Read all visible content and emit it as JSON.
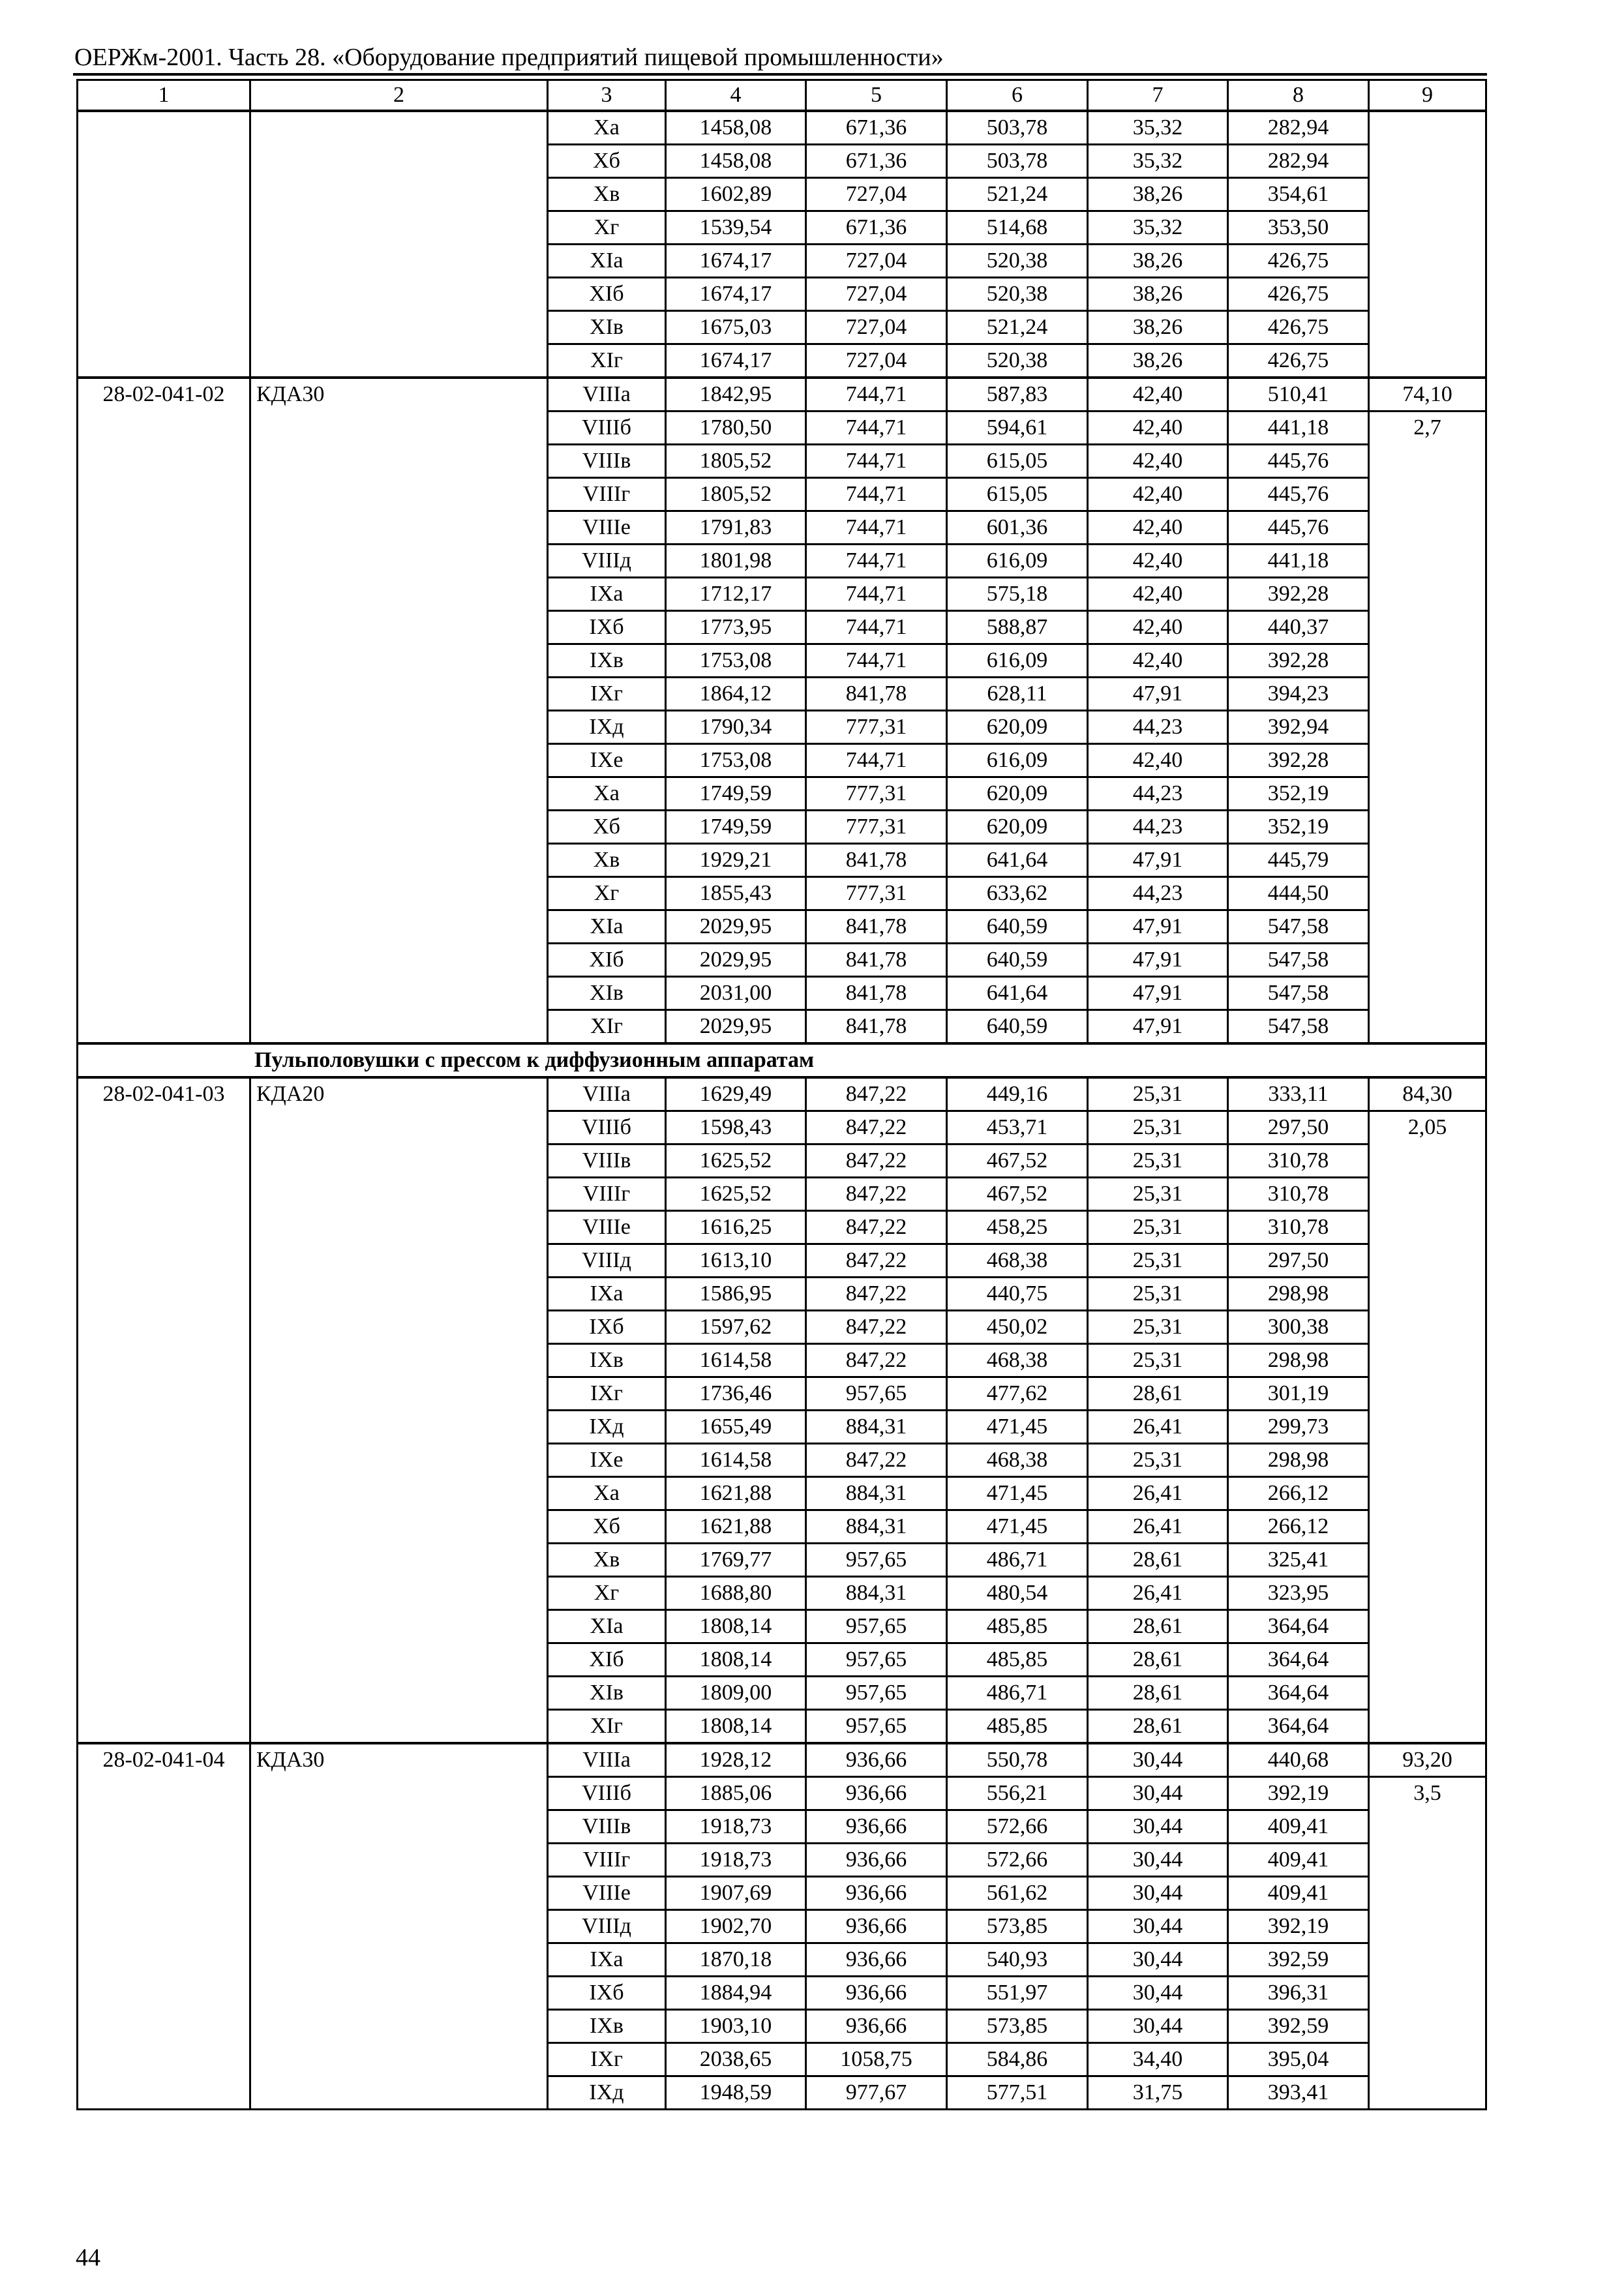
{
  "header": {
    "title": "ОЕРЖм-2001. Часть 28. «Оборудование предприятий пищевой промышленности»"
  },
  "table": {
    "column_numbers": [
      "1",
      "2",
      "3",
      "4",
      "5",
      "6",
      "7",
      "8",
      "9"
    ],
    "blocks": [
      {
        "type": "group",
        "code": "",
        "name": "",
        "col9": [],
        "rows": [
          [
            "Xа",
            "1458,08",
            "671,36",
            "503,78",
            "35,32",
            "282,94"
          ],
          [
            "Xб",
            "1458,08",
            "671,36",
            "503,78",
            "35,32",
            "282,94"
          ],
          [
            "Xв",
            "1602,89",
            "727,04",
            "521,24",
            "38,26",
            "354,61"
          ],
          [
            "Xг",
            "1539,54",
            "671,36",
            "514,68",
            "35,32",
            "353,50"
          ],
          [
            "XIа",
            "1674,17",
            "727,04",
            "520,38",
            "38,26",
            "426,75"
          ],
          [
            "XIб",
            "1674,17",
            "727,04",
            "520,38",
            "38,26",
            "426,75"
          ],
          [
            "XIв",
            "1675,03",
            "727,04",
            "521,24",
            "38,26",
            "426,75"
          ],
          [
            "XIг",
            "1674,17",
            "727,04",
            "520,38",
            "38,26",
            "426,75"
          ]
        ]
      },
      {
        "type": "group",
        "code": "28-02-041-02",
        "name": "КДА30",
        "col9": [
          "74,10",
          "2,7"
        ],
        "rows": [
          [
            "VIIIа",
            "1842,95",
            "744,71",
            "587,83",
            "42,40",
            "510,41"
          ],
          [
            "VIIIб",
            "1780,50",
            "744,71",
            "594,61",
            "42,40",
            "441,18"
          ],
          [
            "VIIIв",
            "1805,52",
            "744,71",
            "615,05",
            "42,40",
            "445,76"
          ],
          [
            "VIIIг",
            "1805,52",
            "744,71",
            "615,05",
            "42,40",
            "445,76"
          ],
          [
            "VIIIе",
            "1791,83",
            "744,71",
            "601,36",
            "42,40",
            "445,76"
          ],
          [
            "VIIIд",
            "1801,98",
            "744,71",
            "616,09",
            "42,40",
            "441,18"
          ],
          [
            "IXа",
            "1712,17",
            "744,71",
            "575,18",
            "42,40",
            "392,28"
          ],
          [
            "IXб",
            "1773,95",
            "744,71",
            "588,87",
            "42,40",
            "440,37"
          ],
          [
            "IXв",
            "1753,08",
            "744,71",
            "616,09",
            "42,40",
            "392,28"
          ],
          [
            "IXг",
            "1864,12",
            "841,78",
            "628,11",
            "47,91",
            "394,23"
          ],
          [
            "IXд",
            "1790,34",
            "777,31",
            "620,09",
            "44,23",
            "392,94"
          ],
          [
            "IXе",
            "1753,08",
            "744,71",
            "616,09",
            "42,40",
            "392,28"
          ],
          [
            "Xа",
            "1749,59",
            "777,31",
            "620,09",
            "44,23",
            "352,19"
          ],
          [
            "Xб",
            "1749,59",
            "777,31",
            "620,09",
            "44,23",
            "352,19"
          ],
          [
            "Xв",
            "1929,21",
            "841,78",
            "641,64",
            "47,91",
            "445,79"
          ],
          [
            "Xг",
            "1855,43",
            "777,31",
            "633,62",
            "44,23",
            "444,50"
          ],
          [
            "XIа",
            "2029,95",
            "841,78",
            "640,59",
            "47,91",
            "547,58"
          ],
          [
            "XIб",
            "2029,95",
            "841,78",
            "640,59",
            "47,91",
            "547,58"
          ],
          [
            "XIв",
            "2031,00",
            "841,78",
            "641,64",
            "47,91",
            "547,58"
          ],
          [
            "XIг",
            "2029,95",
            "841,78",
            "640,59",
            "47,91",
            "547,58"
          ]
        ]
      },
      {
        "type": "section",
        "title": "Пульполовушки с прессом к диффузионным аппаратам"
      },
      {
        "type": "group",
        "code": "28-02-041-03",
        "name": "КДА20",
        "col9": [
          "84,30",
          "2,05"
        ],
        "rows": [
          [
            "VIIIа",
            "1629,49",
            "847,22",
            "449,16",
            "25,31",
            "333,11"
          ],
          [
            "VIIIб",
            "1598,43",
            "847,22",
            "453,71",
            "25,31",
            "297,50"
          ],
          [
            "VIIIв",
            "1625,52",
            "847,22",
            "467,52",
            "25,31",
            "310,78"
          ],
          [
            "VIIIг",
            "1625,52",
            "847,22",
            "467,52",
            "25,31",
            "310,78"
          ],
          [
            "VIIIе",
            "1616,25",
            "847,22",
            "458,25",
            "25,31",
            "310,78"
          ],
          [
            "VIIIд",
            "1613,10",
            "847,22",
            "468,38",
            "25,31",
            "297,50"
          ],
          [
            "IXа",
            "1586,95",
            "847,22",
            "440,75",
            "25,31",
            "298,98"
          ],
          [
            "IXб",
            "1597,62",
            "847,22",
            "450,02",
            "25,31",
            "300,38"
          ],
          [
            "IXв",
            "1614,58",
            "847,22",
            "468,38",
            "25,31",
            "298,98"
          ],
          [
            "IXг",
            "1736,46",
            "957,65",
            "477,62",
            "28,61",
            "301,19"
          ],
          [
            "IXд",
            "1655,49",
            "884,31",
            "471,45",
            "26,41",
            "299,73"
          ],
          [
            "IXе",
            "1614,58",
            "847,22",
            "468,38",
            "25,31",
            "298,98"
          ],
          [
            "Xа",
            "1621,88",
            "884,31",
            "471,45",
            "26,41",
            "266,12"
          ],
          [
            "Xб",
            "1621,88",
            "884,31",
            "471,45",
            "26,41",
            "266,12"
          ],
          [
            "Xв",
            "1769,77",
            "957,65",
            "486,71",
            "28,61",
            "325,41"
          ],
          [
            "Xг",
            "1688,80",
            "884,31",
            "480,54",
            "26,41",
            "323,95"
          ],
          [
            "XIа",
            "1808,14",
            "957,65",
            "485,85",
            "28,61",
            "364,64"
          ],
          [
            "XIб",
            "1808,14",
            "957,65",
            "485,85",
            "28,61",
            "364,64"
          ],
          [
            "XIв",
            "1809,00",
            "957,65",
            "486,71",
            "28,61",
            "364,64"
          ],
          [
            "XIг",
            "1808,14",
            "957,65",
            "485,85",
            "28,61",
            "364,64"
          ]
        ]
      },
      {
        "type": "group",
        "code": "28-02-041-04",
        "name": "КДА30",
        "col9": [
          "93,20",
          "3,5"
        ],
        "rows": [
          [
            "VIIIа",
            "1928,12",
            "936,66",
            "550,78",
            "30,44",
            "440,68"
          ],
          [
            "VIIIб",
            "1885,06",
            "936,66",
            "556,21",
            "30,44",
            "392,19"
          ],
          [
            "VIIIв",
            "1918,73",
            "936,66",
            "572,66",
            "30,44",
            "409,41"
          ],
          [
            "VIIIг",
            "1918,73",
            "936,66",
            "572,66",
            "30,44",
            "409,41"
          ],
          [
            "VIIIе",
            "1907,69",
            "936,66",
            "561,62",
            "30,44",
            "409,41"
          ],
          [
            "VIIIд",
            "1902,70",
            "936,66",
            "573,85",
            "30,44",
            "392,19"
          ],
          [
            "IXа",
            "1870,18",
            "936,66",
            "540,93",
            "30,44",
            "392,59"
          ],
          [
            "IXб",
            "1884,94",
            "936,66",
            "551,97",
            "30,44",
            "396,31"
          ],
          [
            "IXв",
            "1903,10",
            "936,66",
            "573,85",
            "30,44",
            "392,59"
          ],
          [
            "IXг",
            "2038,65",
            "1058,75",
            "584,86",
            "34,40",
            "395,04"
          ],
          [
            "IXд",
            "1948,59",
            "977,67",
            "577,51",
            "31,75",
            "393,41"
          ]
        ]
      }
    ]
  },
  "footer": {
    "page_number": "44"
  }
}
